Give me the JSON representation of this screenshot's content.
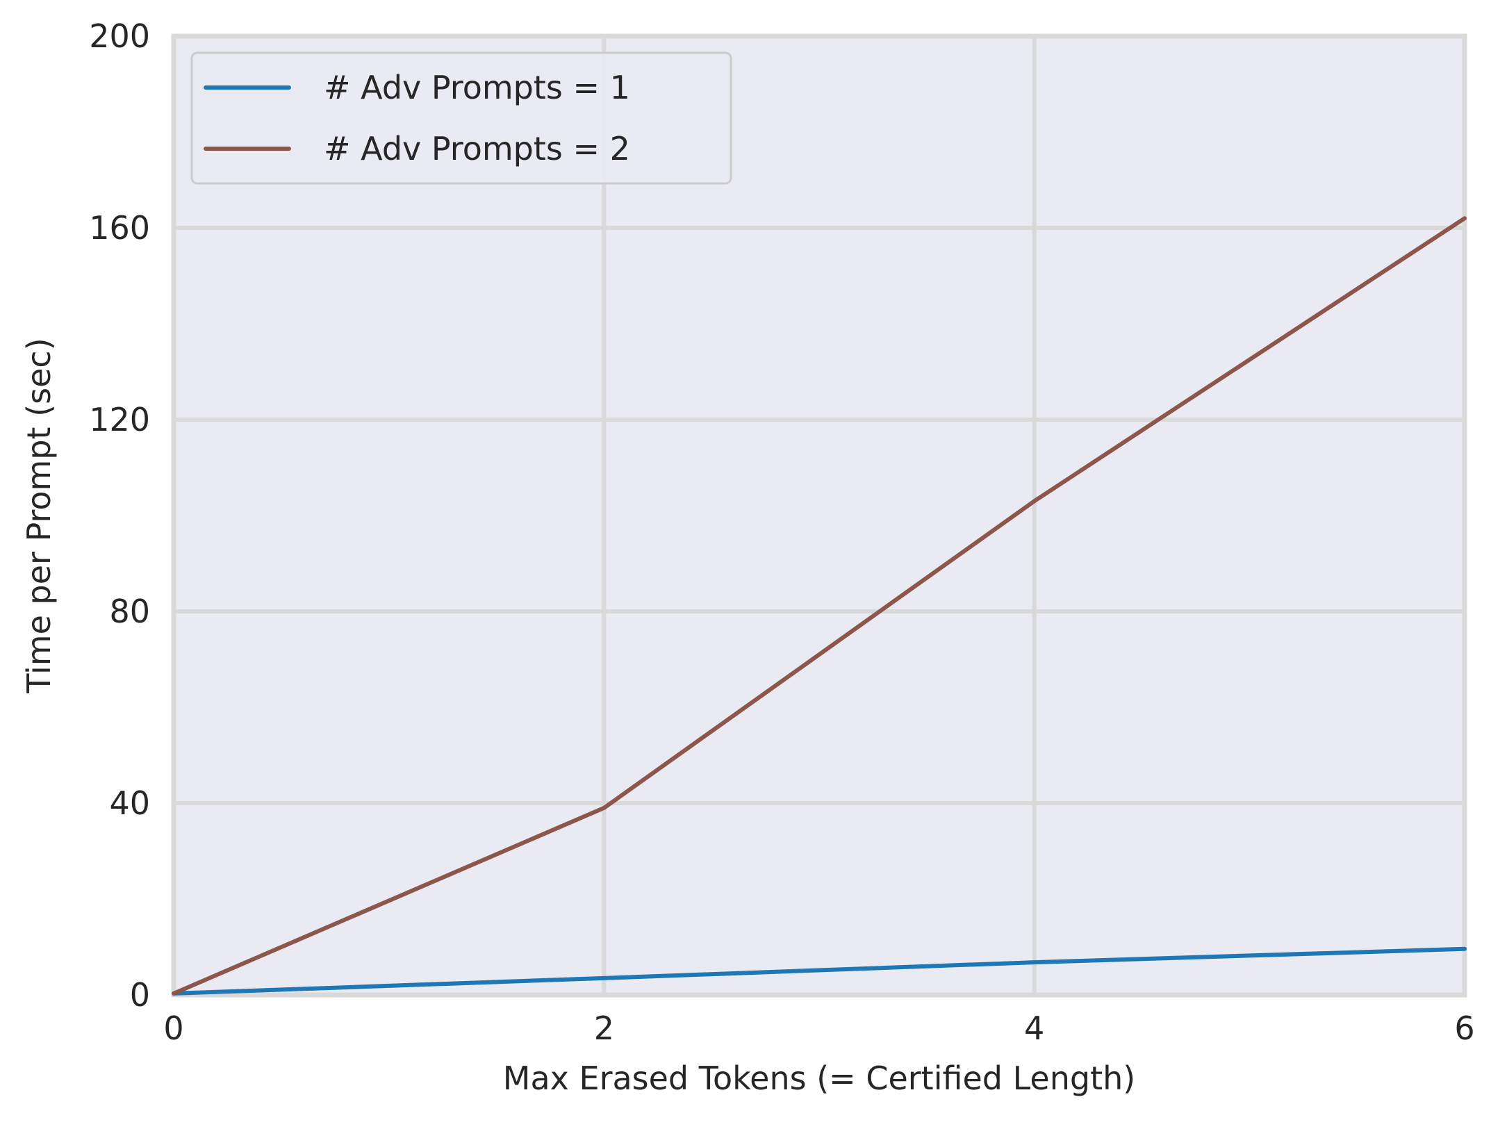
{
  "chart_data": {
    "type": "line",
    "xlabel": "Max Erased Tokens (= Certified Length)",
    "ylabel": "Time per Prompt (sec)",
    "xlim": [
      0,
      6
    ],
    "ylim": [
      0,
      200
    ],
    "xticks": [
      "0",
      "2",
      "4",
      "6"
    ],
    "yticks": [
      "0",
      "40",
      "80",
      "120",
      "160",
      "200"
    ],
    "grid": true,
    "legend_position": "top-left",
    "background": "#eaeaf2",
    "grid_color": "#d9d9d9",
    "series": [
      {
        "name": "# Adv Prompts = 1",
        "color": "#1f77b4",
        "x": [
          0,
          2,
          4,
          6
        ],
        "y": [
          0.3,
          3.5,
          6.8,
          9.6
        ]
      },
      {
        "name": "# Adv Prompts = 2",
        "color": "#8c564b",
        "x": [
          0,
          2,
          4,
          6
        ],
        "y": [
          0.3,
          39,
          103,
          162
        ]
      }
    ]
  }
}
